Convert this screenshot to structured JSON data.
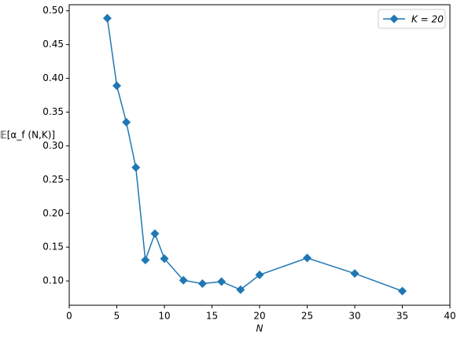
{
  "chart_data": {
    "type": "line",
    "x_label": "N",
    "y_label": "𝔼[α_f (N,K)]",
    "series": [
      {
        "name": "K = 20",
        "color": "#1f77b4",
        "x": [
          4,
          5,
          6,
          7,
          8,
          9,
          10,
          12,
          14,
          16,
          18,
          20,
          25,
          30,
          35
        ],
        "values": [
          0.489,
          0.389,
          0.335,
          0.268,
          0.131,
          0.17,
          0.133,
          0.101,
          0.096,
          0.099,
          0.087,
          0.109,
          0.134,
          0.111,
          0.085
        ]
      }
    ],
    "xlim": [
      0,
      40
    ],
    "xticks": [
      0,
      5,
      10,
      15,
      20,
      25,
      30,
      35,
      40
    ],
    "ylim": [
      0.064,
      0.509
    ],
    "yticks": [
      {
        "value": 0.1,
        "label": "0.10"
      },
      {
        "value": 0.15,
        "label": "0.15"
      },
      {
        "value": 0.2,
        "label": "0.20"
      },
      {
        "value": 0.25,
        "label": "0.25"
      },
      {
        "value": 0.3,
        "label": "0.30"
      },
      {
        "value": 0.35,
        "label": "0.35"
      },
      {
        "value": 0.4,
        "label": "0.40"
      },
      {
        "value": 0.45,
        "label": "0.45"
      },
      {
        "value": 0.5,
        "label": "0.50"
      }
    ],
    "legend": "upper right",
    "grid": false
  }
}
